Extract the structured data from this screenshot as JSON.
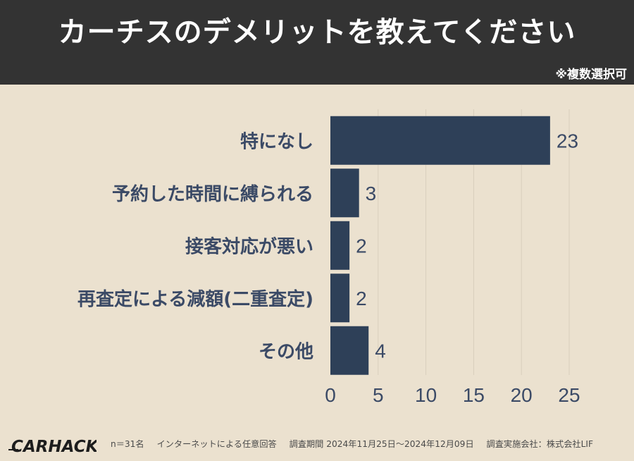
{
  "header": {
    "title": "カーチスのデメリットを教えてください",
    "note": "※複数選択可"
  },
  "footer": {
    "logo_text": "CARHACK",
    "sample": "n＝31名",
    "method": "インターネットによる任意回答",
    "period": "調査期間 2024年11月25日〜2024年12月09日",
    "company": "調査実施会社：株式会社LIF"
  },
  "colors": {
    "header_bg": "#333333",
    "background": "#ebe1cf",
    "bar": "#2e4058",
    "label_text": "#3b4a66",
    "grid": "#d9cfbd"
  },
  "chart_data": {
    "type": "bar",
    "orientation": "horizontal",
    "categories": [
      "特になし",
      "予約した時間に縛られる",
      "接客対応が悪い",
      "再査定による減額(二重査定)",
      "その他"
    ],
    "values": [
      23,
      3,
      2,
      2,
      4
    ],
    "xlim": [
      0,
      25
    ],
    "xticks": [
      0,
      5,
      10,
      15,
      20,
      25
    ],
    "grid": true,
    "data_labels": true
  }
}
